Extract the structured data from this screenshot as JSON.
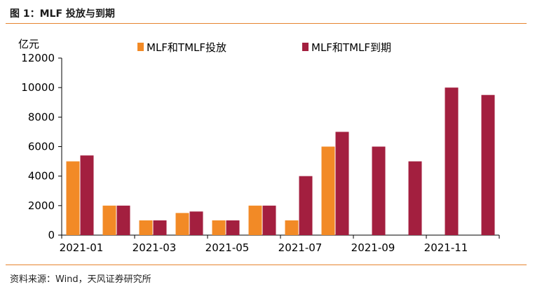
{
  "header": {
    "title": "图 1：MLF 投放与到期"
  },
  "footer": {
    "source": "资料来源：Wind，天风证券研究所"
  },
  "colors": {
    "accent": "#e6842f",
    "issue": "#f28a26",
    "maturity": "#a31f3f"
  },
  "chart_data": {
    "type": "bar",
    "unit_label": "亿元",
    "categories": [
      "2021-01",
      "2021-02",
      "2021-03",
      "2021-04",
      "2021-05",
      "2021-06",
      "2021-07",
      "2021-08",
      "2021-09",
      "2021-10",
      "2021-11",
      "2021-12"
    ],
    "x_tick_labels": [
      "2021-01",
      "2021-03",
      "2021-05",
      "2021-07",
      "2021-09",
      "2021-11"
    ],
    "series": [
      {
        "name": "MLF和TMLF投放",
        "color": "#f28a26",
        "values": [
          5000,
          2000,
          1000,
          1500,
          1000,
          2000,
          1000,
          6000,
          0,
          0,
          0,
          0
        ]
      },
      {
        "name": "MLF和TMLF到期",
        "color": "#a31f3f",
        "values": [
          5400,
          2000,
          1000,
          1600,
          1000,
          2000,
          4000,
          7000,
          6000,
          5000,
          10000,
          9500
        ]
      }
    ],
    "ylim": [
      0,
      12000
    ],
    "y_ticks": [
      0,
      2000,
      4000,
      6000,
      8000,
      10000,
      12000
    ],
    "legend_position": "top",
    "grid": false
  }
}
